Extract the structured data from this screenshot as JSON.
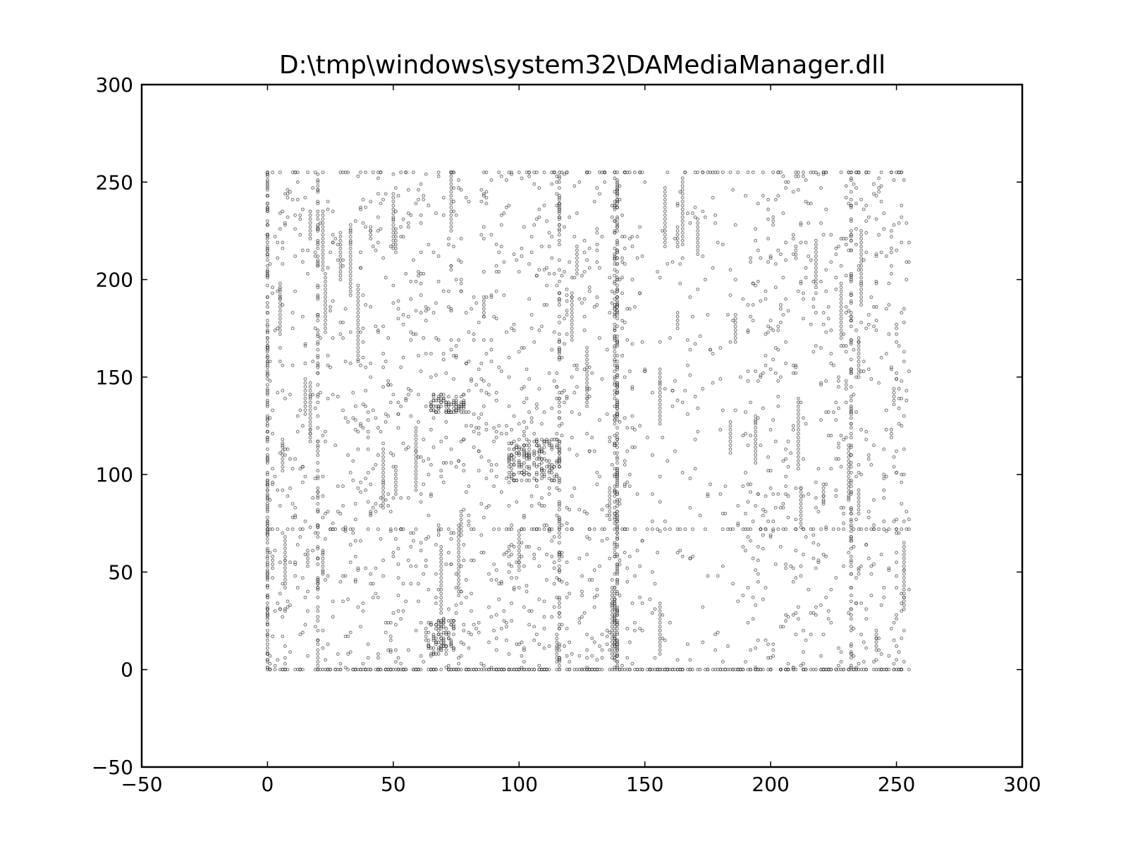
{
  "chart_data": {
    "type": "scatter",
    "title": "D:\\tmp\\windows\\system32\\DAMediaManager.dll",
    "xlabel": "",
    "ylabel": "",
    "xlim": [
      -50,
      300
    ],
    "ylim": [
      -50,
      300
    ],
    "xticks": [
      -50,
      0,
      50,
      100,
      150,
      200,
      250,
      300
    ],
    "yticks": [
      -50,
      0,
      50,
      100,
      150,
      200,
      250,
      300
    ],
    "xtick_labels": [
      "−50",
      "0",
      "50",
      "100",
      "150",
      "200",
      "250",
      "300"
    ],
    "ytick_labels": [
      "−50",
      "0",
      "50",
      "100",
      "150",
      "200",
      "250",
      "300"
    ],
    "grid": false,
    "legend": "none",
    "marker_color": "#000000",
    "point_range": [
      0,
      255
    ],
    "dense_lines": {
      "rows_y": [
        0,
        72,
        255
      ],
      "columns_x": [
        0,
        20,
        116,
        138,
        139,
        232
      ]
    },
    "clusters": [
      {
        "x": [
          96,
          104
        ],
        "y": [
          97,
          118
        ]
      },
      {
        "x": [
          106,
          116
        ],
        "y": [
          97,
          118
        ]
      },
      {
        "x": [
          65,
          78
        ],
        "y": [
          132,
          141
        ]
      },
      {
        "x": [
          64,
          74
        ],
        "y": [
          8,
          26
        ]
      }
    ],
    "note_points_count_estimate": 6000
  }
}
